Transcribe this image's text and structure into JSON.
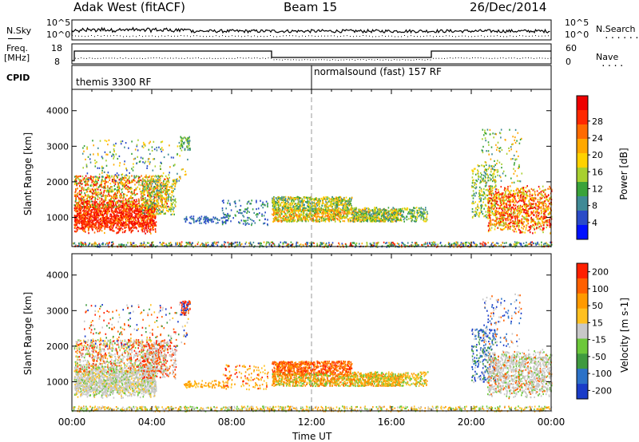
{
  "header": {
    "station": "Adak West (fitACF)",
    "beam": "Beam 15",
    "date": "26/Dec/2014"
  },
  "top_panels": {
    "nsky_label": "N.Sky",
    "nsky_ticks": [
      "10^5",
      "10^0"
    ],
    "nsearch_label": "N.Search",
    "nsearch_ticks": [
      "10^5",
      "10^0"
    ],
    "freq_label": "Freq.",
    "freq_unit": "[MHz]",
    "freq_ticks": [
      "18",
      "8"
    ],
    "nave_label": "Nave",
    "nave_ticks": [
      "60",
      "0"
    ],
    "cpid_label": "CPID",
    "cpid_segments": [
      "themis 3300 RF",
      "normalsound (fast) 157 RF"
    ]
  },
  "chart_data": [
    {
      "type": "heatmap",
      "name": "power",
      "ylabel": "Slant Range [km]",
      "yticks": [
        "1000",
        "2000",
        "3000",
        "4000"
      ],
      "ylim": [
        180,
        4600
      ],
      "xlim": [
        0,
        24
      ],
      "colorbar_label": "Power [dB]",
      "colorbar_ticks": [
        "4",
        "8",
        "12",
        "16",
        "20",
        "24",
        "28"
      ],
      "colors": [
        "#0010ff",
        "#2a4bc8",
        "#3f8a96",
        "#3aa33a",
        "#a8d030",
        "#ffd200",
        "#ffa800",
        "#ff6a00",
        "#ff2800",
        "#ee0000"
      ]
    },
    {
      "type": "heatmap",
      "name": "velocity",
      "ylabel": "Slant Range [km]",
      "yticks": [
        "1000",
        "2000",
        "3000",
        "4000"
      ],
      "ylim": [
        180,
        4600
      ],
      "xlim": [
        0,
        24
      ],
      "colorbar_label": "Velocity [m s-1]",
      "colorbar_ticks": [
        "200",
        "100",
        "50",
        "15",
        "-15",
        "-50",
        "-100",
        "-200"
      ],
      "colors": [
        "#1a3cc8",
        "#2c72c8",
        "#3f9a3f",
        "#6cc83a",
        "#c8c8c8",
        "#ffc020",
        "#ff9a00",
        "#ff6000",
        "#ff2000"
      ]
    }
  ],
  "xaxis": {
    "label": "Time UT",
    "ticks": [
      "00:00",
      "04:00",
      "08:00",
      "12:00",
      "16:00",
      "20:00",
      "00:00"
    ]
  }
}
